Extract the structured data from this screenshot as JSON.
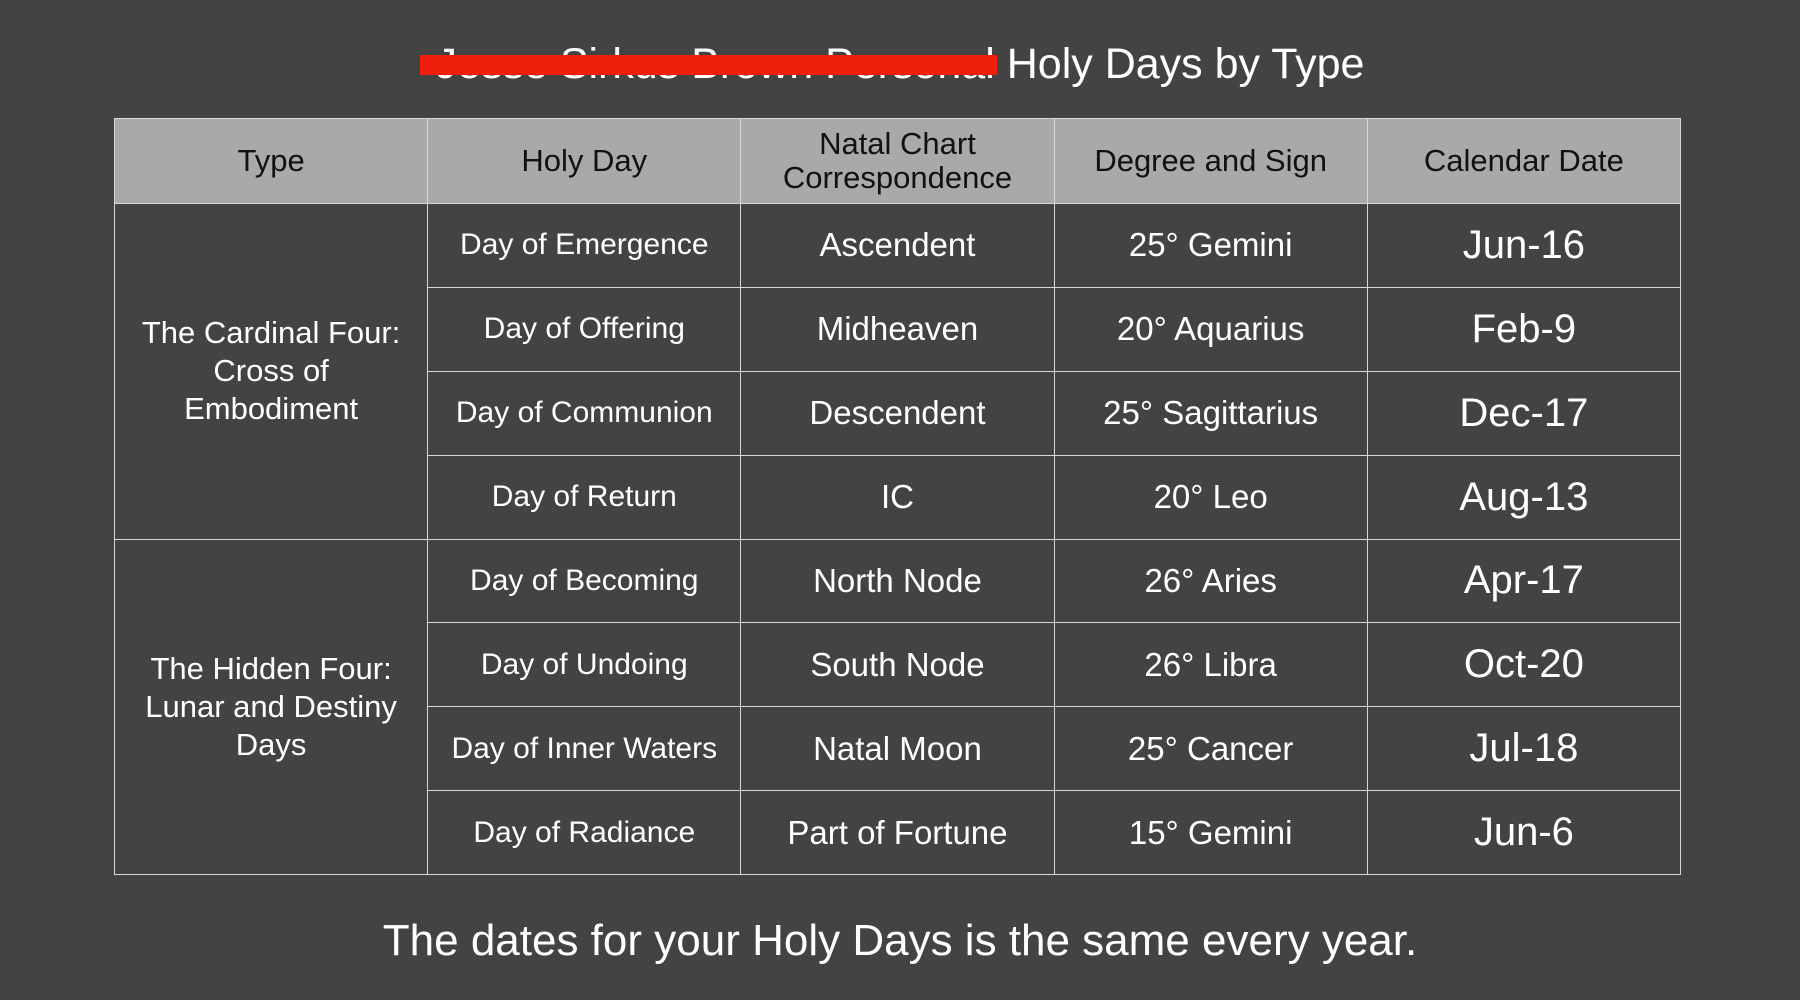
{
  "title": {
    "redacted": "Jesse Sirkus Brown Personal",
    "visible": "Holy Days by Type"
  },
  "colors": {
    "background": "#434343",
    "header": "#a9a9a9",
    "redaction": "#ee1f0d"
  },
  "table": {
    "headers": [
      "Type",
      "Holy Day",
      "Natal Chart Correspondence",
      "Degree and Sign",
      "Calendar Date"
    ],
    "groups": [
      {
        "type": "The Cardinal Four: Cross of Embodiment",
        "rows": [
          [
            "Day of Emergence",
            "Ascendent",
            "25° Gemini",
            "Jun-16"
          ],
          [
            "Day of Offering",
            "Midheaven",
            "20° Aquarius",
            "Feb-9"
          ],
          [
            "Day of Communion",
            "Descendent",
            "25° Sagittarius",
            "Dec-17"
          ],
          [
            "Day of Return",
            "IC",
            "20° Leo",
            "Aug-13"
          ]
        ]
      },
      {
        "type": "The Hidden Four: Lunar and Destiny Days",
        "rows": [
          [
            "Day of Becoming",
            "North Node",
            "26° Aries",
            "Apr-17"
          ],
          [
            "Day of Undoing",
            "South Node",
            "26° Libra",
            "Oct-20"
          ],
          [
            "Day of Inner Waters",
            "Natal Moon",
            "25° Cancer",
            "Jul-18"
          ],
          [
            "Day of Radiance",
            "Part of Fortune",
            "15° Gemini",
            "Jun-6"
          ]
        ]
      }
    ]
  },
  "footer": "The dates for your Holy Days is the same every year."
}
